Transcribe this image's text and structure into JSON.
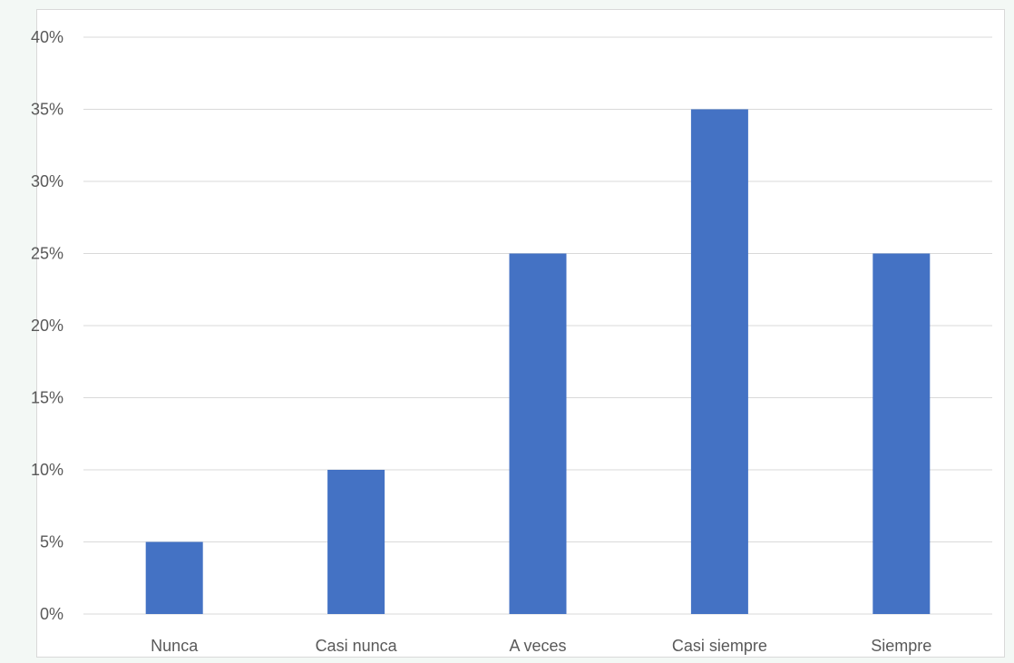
{
  "chart_data": {
    "type": "bar",
    "categories": [
      "Nunca",
      "Casi nunca",
      "A veces",
      "Casi siempre",
      "Siempre"
    ],
    "values": [
      5,
      10,
      25,
      35,
      25
    ],
    "value_unit": "%",
    "title": "",
    "xlabel": "",
    "ylabel": "",
    "ylim": [
      0,
      40
    ],
    "yticks": [
      "0%",
      "5%",
      "10%",
      "15%",
      "20%",
      "25%",
      "30%",
      "35%",
      "40%"
    ],
    "grid": "horizontal",
    "legend": "none"
  },
  "colors": {
    "bar": "#4472c4",
    "grid": "#d9d9d9",
    "text": "#595959"
  }
}
